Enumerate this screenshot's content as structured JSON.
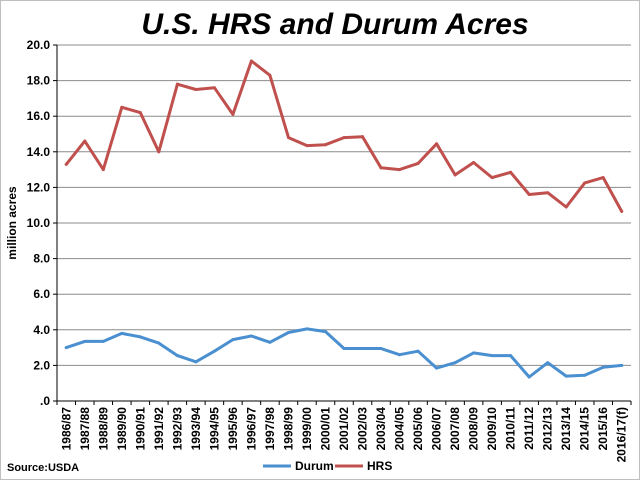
{
  "chart_data": {
    "type": "line",
    "title": "U.S. HRS and Durum Acres",
    "ylabel": "million acres",
    "xlabel": "",
    "ylim": [
      0,
      20
    ],
    "yticks": [
      0,
      2,
      4,
      6,
      8,
      10,
      12,
      14,
      16,
      18,
      20
    ],
    "ytick_labels": [
      ".0",
      "2.0",
      "4.0",
      "6.0",
      "8.0",
      "10.0",
      "12.0",
      "14.0",
      "16.0",
      "18.0",
      "20.0"
    ],
    "grid": true,
    "legend": "bottom",
    "source": "Source:USDA",
    "categories": [
      "1986/87",
      "1987/88",
      "1988/89",
      "1989/90",
      "1990/91",
      "1991/92",
      "1992/93",
      "1993/94",
      "1994/95",
      "1995/96",
      "1996/97",
      "1997/98",
      "1998/99",
      "1999/00",
      "2000/01",
      "2001/02",
      "2002/03",
      "2003/04",
      "2004/05",
      "2005/06",
      "2006/07",
      "2007/08",
      "2008/09",
      "2009/10",
      "2010/11",
      "2011/12",
      "2012/13",
      "2013/14",
      "2014/15",
      "2015/16",
      "2016/17(f)"
    ],
    "series": [
      {
        "name": "Durum",
        "color": "#4a8fd0",
        "values": [
          3.0,
          3.35,
          3.35,
          3.8,
          3.6,
          3.25,
          2.55,
          2.2,
          2.8,
          3.45,
          3.65,
          3.3,
          3.85,
          4.05,
          3.9,
          2.95,
          2.95,
          2.95,
          2.6,
          2.8,
          1.85,
          2.15,
          2.7,
          2.55,
          2.55,
          1.35,
          2.15,
          1.4,
          1.45,
          1.9,
          2.0
        ]
      },
      {
        "name": "HRS",
        "color": "#c0504d",
        "values": [
          13.3,
          14.6,
          13.0,
          16.5,
          16.2,
          14.0,
          17.8,
          17.5,
          17.6,
          16.1,
          19.1,
          18.3,
          14.8,
          14.35,
          14.4,
          14.8,
          14.85,
          13.1,
          13.0,
          13.35,
          14.45,
          12.7,
          13.4,
          12.55,
          12.85,
          11.6,
          11.7,
          10.9,
          12.25,
          12.55,
          10.65
        ]
      }
    ]
  }
}
